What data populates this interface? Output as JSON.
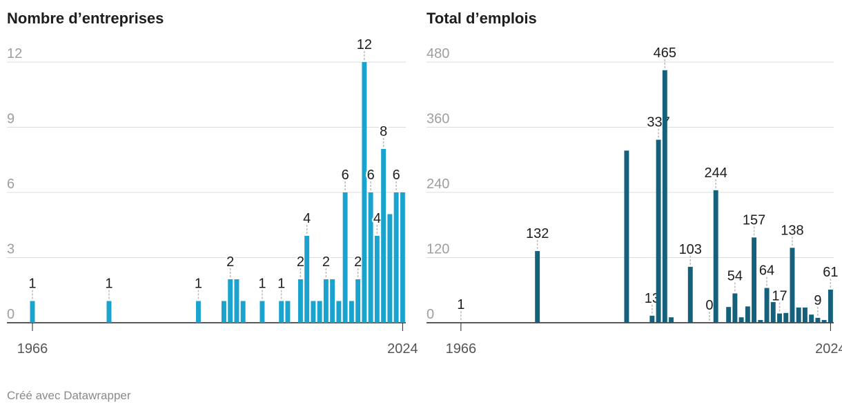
{
  "charts": [
    {
      "chart_data": {
        "type": "bar",
        "title": "Nombre d’entreprises",
        "color": "#1ba3cf",
        "x": [
          1966,
          1978,
          1992,
          1996,
          1997,
          1998,
          1999,
          2002,
          2005,
          2006,
          2008,
          2009,
          2010,
          2011,
          2012,
          2013,
          2014,
          2015,
          2016,
          2017,
          2018,
          2019,
          2020,
          2021,
          2022,
          2023,
          2024
        ],
        "values": [
          1,
          1,
          1,
          1,
          2,
          2,
          1,
          1,
          1,
          1,
          2,
          4,
          1,
          1,
          2,
          2,
          1,
          6,
          1,
          2,
          12,
          6,
          4,
          8,
          5,
          6,
          6
        ],
        "value_labels": [
          "1",
          "1",
          "1",
          null,
          "2",
          null,
          null,
          "1",
          "1",
          null,
          "2",
          "4",
          null,
          null,
          "2",
          null,
          null,
          "6",
          null,
          "2",
          "12",
          "6",
          "4",
          "8",
          null,
          "6",
          null
        ],
        "xlim": [
          1962,
          2024.5
        ],
        "xticks": [
          1966,
          2024
        ],
        "ylim": [
          0,
          12
        ],
        "yticks": [
          0,
          3,
          6,
          9,
          12
        ],
        "grid": true
      }
    },
    {
      "chart_data": {
        "type": "bar",
        "title": "Total d’emplois",
        "color": "#15607a",
        "x": [
          1966,
          1978,
          1992,
          1996,
          1997,
          1998,
          1999,
          2002,
          2005,
          2006,
          2008,
          2009,
          2010,
          2011,
          2012,
          2013,
          2014,
          2015,
          2016,
          2017,
          2018,
          2019,
          2020,
          2021,
          2022,
          2023,
          2024
        ],
        "values": [
          1,
          132,
          317,
          13,
          337,
          465,
          10,
          103,
          0,
          244,
          29,
          54,
          10,
          30,
          157,
          5,
          64,
          38,
          17,
          18,
          138,
          28,
          28,
          15,
          9,
          5,
          61
        ],
        "value_labels": [
          "1",
          "132",
          null,
          "13",
          "337",
          "465",
          null,
          "103",
          "0",
          "244",
          null,
          "54",
          null,
          null,
          "157",
          null,
          "64",
          null,
          "17",
          null,
          "138",
          null,
          null,
          null,
          "9",
          null,
          "61"
        ],
        "xlim": [
          1960.6,
          2024.5
        ],
        "xticks": [
          1966,
          2024
        ],
        "ylim": [
          0,
          480
        ],
        "yticks": [
          0,
          120,
          240,
          360,
          480
        ],
        "grid": true
      }
    }
  ],
  "footer": "Créé avec Datawrapper"
}
